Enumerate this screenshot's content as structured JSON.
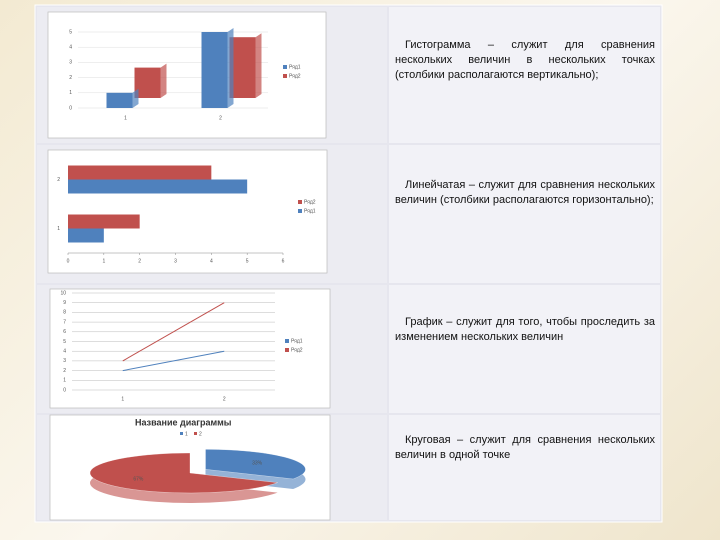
{
  "rows": [
    {
      "text": "Гистограмма – служит для сравнения нескольких величин в нескольких точках (столбики располагаются вертикально);",
      "chart": {
        "type": "column",
        "categories": [
          "1",
          "2"
        ],
        "series": [
          {
            "name": "Ряд1",
            "color": "#4f81bd",
            "values": [
              1,
              5
            ]
          },
          {
            "name": "Ряд2",
            "color": "#c0504d",
            "values": [
              2,
              4
            ]
          }
        ],
        "ylim": [
          0,
          5
        ],
        "yticks": [
          0,
          1,
          2,
          3,
          4,
          5
        ]
      }
    },
    {
      "text": "Линейчатая – служит для сравнения нескольких величин (столбики располагаются горизонтально);",
      "chart": {
        "type": "hbar",
        "categories": [
          "1",
          "2"
        ],
        "series": [
          {
            "name": "Ряд1",
            "color": "#4f81bd",
            "values": [
              1,
              5
            ]
          },
          {
            "name": "Ряд2",
            "color": "#c0504d",
            "values": [
              2,
              4
            ]
          }
        ],
        "xlim": [
          0,
          6
        ],
        "xticks": [
          0,
          1,
          2,
          3,
          4,
          5,
          6
        ]
      }
    },
    {
      "text": "График – служит для того, чтобы проследить за изменением нескольких величин",
      "chart": {
        "type": "line",
        "categories": [
          "1",
          "2"
        ],
        "series": [
          {
            "name": "Ряд1",
            "color": "#4f81bd",
            "values": [
              2,
              4
            ]
          },
          {
            "name": "Ряд2",
            "color": "#c0504d",
            "values": [
              3,
              9
            ]
          }
        ],
        "ylim": [
          0,
          10
        ],
        "yticks": [
          0,
          1,
          2,
          3,
          4,
          5,
          6,
          7,
          8,
          9,
          10
        ]
      }
    },
    {
      "text": "Круговая – служит для сравнения нескольких величин в одной точке",
      "chart": {
        "type": "pie",
        "title": "Название диаграммы",
        "categories": [
          "1",
          "2"
        ],
        "values": [
          33,
          67
        ],
        "value_labels": [
          "33%",
          "67%"
        ],
        "colors": [
          "#4f81bd",
          "#c0504d"
        ]
      }
    }
  ]
}
